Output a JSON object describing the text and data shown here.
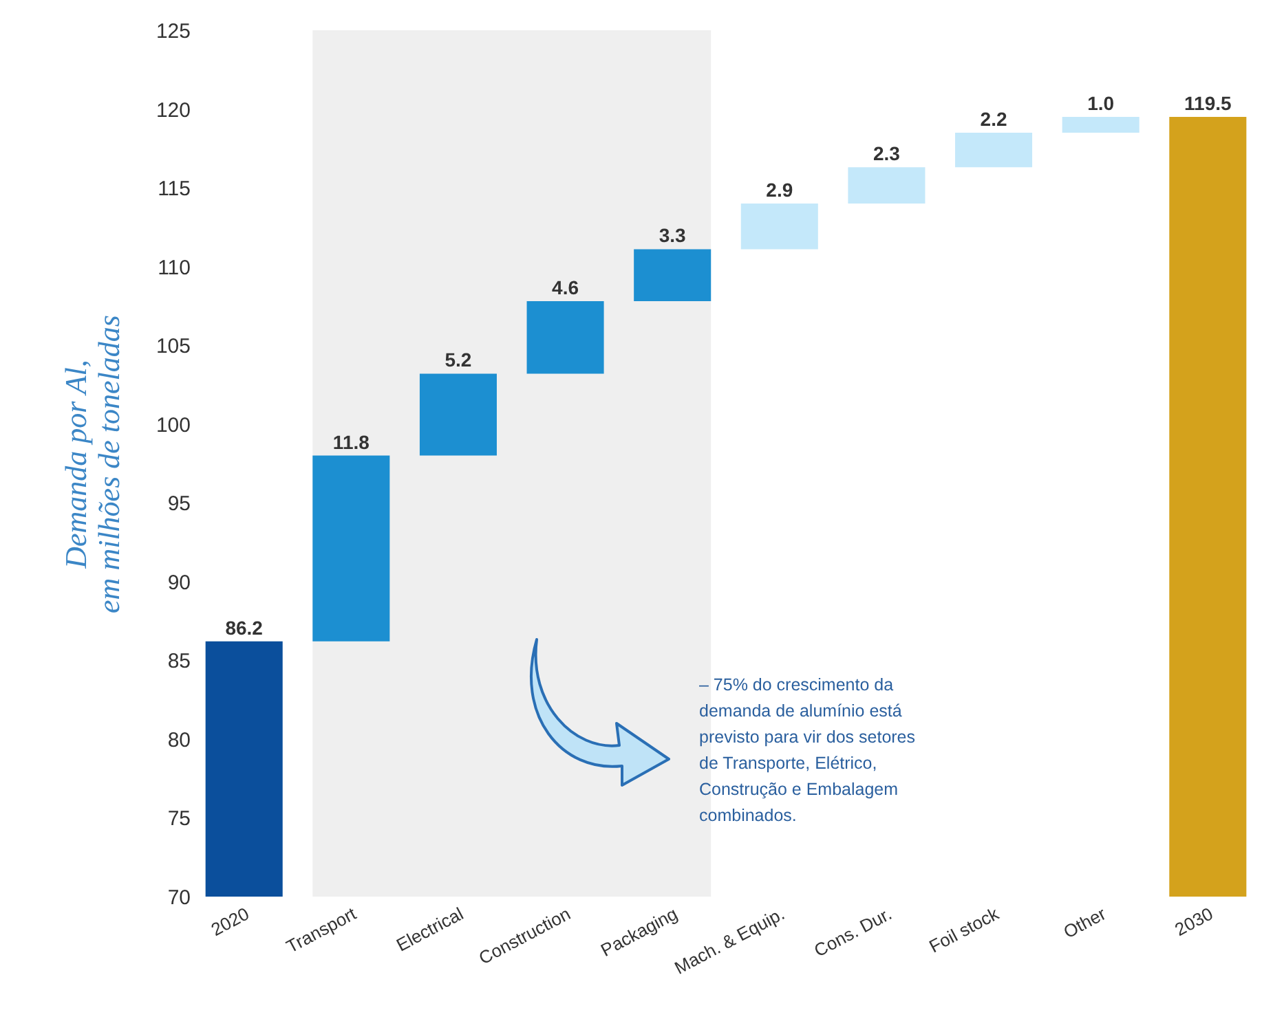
{
  "chart_data": {
    "type": "bar",
    "ylabel": "Demanda por Al, em milhões de toneladas",
    "categories": [
      "2020",
      "Transport",
      "Electrical",
      "Construction",
      "Packaging",
      "Mach. & Equip.",
      "Cons. Dur.",
      "Foil stock",
      "Other",
      "2030"
    ],
    "values": [
      86.2,
      11.8,
      5.2,
      4.6,
      3.3,
      2.9,
      2.3,
      2.2,
      1.0,
      119.5
    ],
    "base": [
      null,
      86.2,
      98.0,
      103.2,
      107.8,
      111.1,
      114.0,
      116.3,
      118.5,
      null
    ],
    "colors": [
      "#0b4f9c",
      "#1c8fd1",
      "#1c8fd1",
      "#1c8fd1",
      "#1c8fd1",
      "#c4e8fa",
      "#c4e8fa",
      "#c4e8fa",
      "#c4e8fa",
      "#d4a21c"
    ],
    "value_labels": [
      "86.2",
      "11.8",
      "5.2",
      "4.6",
      "3.3",
      "2.9",
      "2.3",
      "2.2",
      "1.0",
      "119.5"
    ],
    "ylim": [
      70,
      125
    ],
    "yticks": [
      70,
      75,
      80,
      85,
      90,
      95,
      100,
      105,
      110,
      115,
      120,
      125
    ],
    "grid": false,
    "bands": [
      {
        "axis": "x",
        "from": "Transport",
        "to": "Packaging",
        "color": "#efefef"
      }
    ],
    "annotations": [
      "– 75% do crescimento da demanda de alumínio está previsto para vir dos setores de Transporte, Elétrico, Construção e Embalagem combinados."
    ]
  }
}
